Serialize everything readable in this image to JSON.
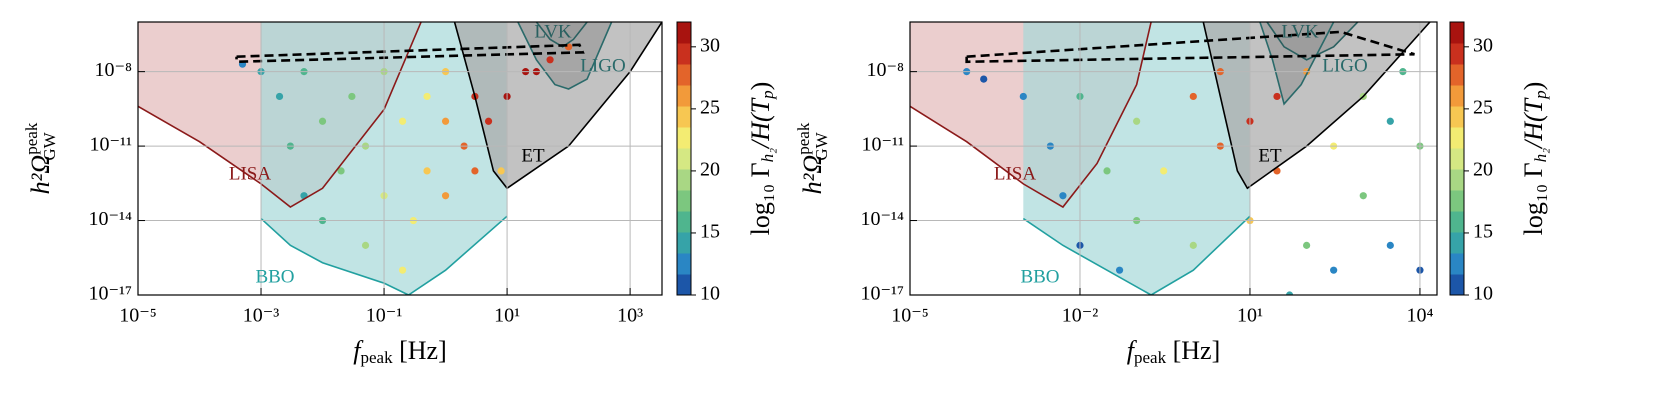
{
  "chart_data": [
    {
      "type": "scatter",
      "xlabel": {
        "main": "f",
        "sub": "peak",
        "rest": " [Hz]"
      },
      "ylabel": {
        "main": "h²Ω",
        "sup": "peak",
        "sub": "GW"
      },
      "clabel": {
        "a": "log₁₀ Γ",
        "b": "h₂",
        "c": "/H(T",
        "d": "p",
        "e": ")"
      },
      "xscale": "log",
      "yscale": "log",
      "grid": true,
      "xlim": [
        1e-05,
        3300
      ],
      "ylim": [
        1e-17,
        1e-06
      ],
      "xticks": [
        {
          "value": 1e-05,
          "label": "10⁻⁵"
        },
        {
          "value": 0.001,
          "label": "10⁻³"
        },
        {
          "value": 0.1,
          "label": "10⁻¹"
        },
        {
          "value": 10,
          "label": "10¹"
        },
        {
          "value": 1000,
          "label": "10³"
        }
      ],
      "yticks": [
        {
          "value": 1e-17,
          "label": "10⁻¹⁷"
        },
        {
          "value": 1e-14,
          "label": "10⁻¹⁴"
        },
        {
          "value": 1e-11,
          "label": "10⁻¹¹"
        },
        {
          "value": 1e-08,
          "label": "10⁻⁸"
        }
      ],
      "clim": [
        10,
        32
      ],
      "cticks": [
        10,
        15,
        20,
        25,
        30
      ],
      "colormap": [
        "#1c56a8",
        "#2a86c4",
        "#36a3a8",
        "#4fb58e",
        "#7cc77f",
        "#a9d784",
        "#d5e883",
        "#f3ec72",
        "#f7c752",
        "#f29a3a",
        "#e3642a",
        "#c9301e",
        "#a8130f"
      ],
      "points": {
        "x": [
          0.0005,
          0.001,
          0.002,
          0.003,
          0.005,
          0.005,
          0.01,
          0.01,
          0.02,
          0.03,
          0.05,
          0.05,
          0.1,
          0.1,
          0.2,
          0.2,
          0.3,
          0.5,
          0.5,
          1,
          1,
          1,
          2,
          3,
          3,
          5,
          10,
          20,
          50,
          100,
          8,
          30
        ],
        "y": [
          2e-08,
          1e-08,
          1e-09,
          1e-11,
          1e-13,
          1e-08,
          1e-10,
          1e-14,
          1e-12,
          1e-09,
          1e-15,
          1e-11,
          1e-08,
          1e-13,
          1e-16,
          1e-10,
          1e-14,
          1e-12,
          1e-09,
          1e-13,
          1e-10,
          1e-08,
          1e-11,
          1e-12,
          1e-09,
          1e-10,
          1e-09,
          1e-08,
          3e-08,
          1e-07,
          1e-12,
          1e-08
        ],
        "c": [
          12,
          14,
          15,
          16,
          15,
          16,
          17,
          16,
          18,
          18,
          19,
          20,
          19,
          21,
          22,
          22,
          23,
          24,
          23,
          26,
          26,
          24,
          28,
          27,
          29,
          30,
          31,
          31,
          30,
          28,
          25,
          32
        ]
      },
      "series": [
        {
          "name": "LISA",
          "color": "#8b1a1a",
          "fill": "#e3b9b9",
          "x": [
            1e-05,
            0.0001,
            0.001,
            0.003,
            0.01,
            0.1,
            0.4
          ],
          "y": [
            4e-10,
            1.5e-11,
            3e-13,
            3.5e-14,
            2e-13,
            3e-10,
            1e-06
          ]
        },
        {
          "name": "BBO",
          "color": "#22a0a0",
          "fill": "#a6d9d9",
          "x": [
            0.001,
            0.003,
            0.01,
            0.1,
            0.25,
            1,
            10
          ],
          "y": [
            1.2e-14,
            1e-15,
            2e-16,
            3e-17,
            1e-17,
            1e-16,
            1.5e-14
          ]
        },
        {
          "name": "ET",
          "color": "#000000",
          "fill": "#a8a8a8",
          "x": [
            1.4,
            3,
            6,
            10,
            100,
            1000,
            3300
          ],
          "y": [
            1e-06,
            1e-09,
            1e-12,
            2e-13,
            1e-11,
            1e-08,
            1e-06
          ]
        },
        {
          "name": "LIGO",
          "color": "#2a6a6a",
          "fill": "#9a9a9a",
          "x": [
            15,
            30,
            60,
            100,
            200,
            500
          ],
          "y": [
            1e-06,
            3e-08,
            3e-09,
            2e-09,
            5e-09,
            1e-06
          ]
        },
        {
          "name": "LVK",
          "color": "#2a6060",
          "fill": "#9a9a9a",
          "x": [
            30,
            50,
            80,
            120,
            200
          ],
          "y": [
            1e-06,
            2e-07,
            1e-07,
            2e-07,
            1e-06
          ]
        },
        {
          "color": "#000000",
          "dash": true,
          "x": [
            0.0004,
            150,
            170,
            0.0004,
            0.0004
          ],
          "y": [
            4e-08,
            1.2e-07,
            6e-08,
            2.5e-08,
            4e-08
          ]
        }
      ]
    },
    {
      "type": "scatter",
      "xlabel": {
        "main": "f",
        "sub": "peak",
        "rest": " [Hz]"
      },
      "ylabel": {
        "main": "h²Ω",
        "sup": "peak",
        "sub": "GW"
      },
      "clabel": {
        "a": "log₁₀ Γ",
        "b": "h₂",
        "c": "/H(T",
        "d": "p",
        "e": ")"
      },
      "xscale": "log",
      "yscale": "log",
      "grid": true,
      "xlim": [
        1e-05,
        20000
      ],
      "ylim": [
        1e-17,
        1e-06
      ],
      "xticks": [
        {
          "value": 1e-05,
          "label": "10⁻⁵"
        },
        {
          "value": 0.01,
          "label": "10⁻²"
        },
        {
          "value": 10,
          "label": "10¹"
        },
        {
          "value": 10000,
          "label": "10⁴"
        }
      ],
      "yticks": [
        {
          "value": 1e-17,
          "label": "10⁻¹⁷"
        },
        {
          "value": 1e-14,
          "label": "10⁻¹⁴"
        },
        {
          "value": 1e-11,
          "label": "10⁻¹¹"
        },
        {
          "value": 1e-08,
          "label": "10⁻⁸"
        }
      ],
      "clim": [
        10,
        32
      ],
      "cticks": [
        10,
        15,
        20,
        25,
        30
      ],
      "colormap": [
        "#1c56a8",
        "#2a86c4",
        "#36a3a8",
        "#4fb58e",
        "#7cc77f",
        "#a9d784",
        "#d5e883",
        "#f3ec72",
        "#f7c752",
        "#f29a3a",
        "#e3642a",
        "#c9301e",
        "#a8130f"
      ],
      "points": {
        "x": [
          0.0001,
          0.0002,
          0.001,
          0.003,
          0.005,
          0.01,
          0.01,
          0.03,
          0.05,
          0.1,
          0.1,
          0.3,
          1,
          1,
          3,
          3,
          10,
          10,
          30,
          30,
          100,
          100,
          300,
          300,
          1000,
          1000,
          3000,
          3000,
          5000,
          10000,
          10000,
          50
        ],
        "y": [
          1e-08,
          5e-09,
          1e-09,
          1e-11,
          1e-13,
          1e-15,
          1e-09,
          1e-12,
          1e-16,
          1e-10,
          1e-14,
          1e-12,
          1e-09,
          1e-15,
          1e-11,
          1e-08,
          1e-10,
          1e-14,
          1e-09,
          1e-12,
          1e-08,
          1e-15,
          1e-11,
          1e-16,
          1e-09,
          1e-13,
          1e-10,
          1e-15,
          1e-08,
          1e-11,
          1e-16,
          1e-17
        ],
        "c": [
          12,
          11,
          13,
          12,
          12,
          11,
          16,
          17,
          13,
          20,
          18,
          23,
          27,
          20,
          28,
          27,
          30,
          24,
          30,
          27,
          26,
          18,
          22,
          12,
          20,
          17,
          15,
          13,
          16,
          17,
          11,
          14
        ]
      },
      "series": [
        {
          "name": "LISA",
          "color": "#8b1a1a",
          "fill": "#e3b9b9",
          "x": [
            1e-05,
            0.0001,
            0.001,
            0.005,
            0.02,
            0.1,
            0.18
          ],
          "y": [
            4e-10,
            1.5e-11,
            3e-13,
            3.5e-14,
            2e-12,
            3e-09,
            1e-06
          ]
        },
        {
          "name": "BBO",
          "color": "#22a0a0",
          "fill": "#a6d9d9",
          "x": [
            0.001,
            0.005,
            0.03,
            0.18,
            1,
            10
          ],
          "y": [
            1.2e-14,
            1e-15,
            1e-16,
            1e-17,
            1e-16,
            1.5e-14
          ]
        },
        {
          "name": "ET",
          "color": "#000000",
          "fill": "#a8a8a8",
          "x": [
            1.5,
            3,
            6,
            9,
            100,
            1000,
            15000
          ],
          "y": [
            1e-06,
            1e-09,
            1e-12,
            2e-13,
            1e-11,
            1e-09,
            1e-06
          ]
        },
        {
          "name": "LIGO",
          "color": "#2a6a6a",
          "fill": "#9a9a9a",
          "x": [
            15,
            25,
            40,
            80,
            300
          ],
          "y": [
            1e-06,
            3e-08,
            5e-10,
            3e-09,
            1e-06
          ]
        },
        {
          "name": "LVK",
          "color": "#2a6060",
          "fill": "#9a9a9a",
          "x": [
            20,
            40,
            100,
            300,
            800
          ],
          "y": [
            1e-06,
            1e-07,
            3e-08,
            1e-07,
            1e-06
          ]
        },
        {
          "color": "#000000",
          "dash": true,
          "x": [
            0.0001,
            400,
            8000,
            0.0001,
            0.0001
          ],
          "y": [
            4e-08,
            4e-07,
            5e-08,
            2.5e-08,
            4e-08
          ]
        }
      ]
    }
  ]
}
